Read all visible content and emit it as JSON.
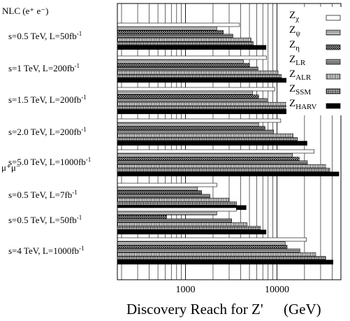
{
  "chart_data": {
    "type": "bar",
    "orientation": "horizontal",
    "xscale": "log",
    "xlim": [
      180,
      50000
    ],
    "grid": "vertical log gridlines",
    "legend_position": "top-right",
    "xlabel": "Discovery Reach for Z'",
    "xlabel_unit": "(GeV)",
    "xticks": [
      "1000",
      "10000"
    ],
    "xtick_values": [
      1000,
      10000
    ],
    "section_labels": [
      {
        "text": "NLC (e⁺ e⁻)",
        "before_group": 0
      },
      {
        "text": "μ⁺μ⁻",
        "before_group": 5
      }
    ],
    "series": [
      {
        "name": "Zχ",
        "sub": "χ",
        "pattern": "open"
      },
      {
        "name": "Zψ",
        "sub": "ψ",
        "pattern": "hlines"
      },
      {
        "name": "Zη",
        "sub": "η",
        "pattern": "crosshatch"
      },
      {
        "name": "ZLR",
        "sub": "LR",
        "pattern": "dense-hlines"
      },
      {
        "name": "ZALR",
        "sub": "ALR",
        "pattern": "vlines"
      },
      {
        "name": "ZSSM",
        "sub": "SSM",
        "pattern": "grid"
      },
      {
        "name": "ZHARV",
        "sub": "HARV",
        "pattern": "solid"
      }
    ],
    "groups": [
      {
        "label": "s=0.5 TeV, L=50fb",
        "exp": "-1",
        "values": [
          3900,
          2200,
          2600,
          3300,
          5200,
          5500,
          7600
        ]
      },
      {
        "label": "s=1 TeV, L=200fb",
        "exp": "-1",
        "values": [
          7700,
          4300,
          5000,
          6200,
          10300,
          11200,
          14900
        ]
      },
      {
        "label": "s=1.5 TeV, L=200fb",
        "exp": "-1",
        "values": [
          9500,
          5400,
          6300,
          7800,
          12800,
          14400,
          18500
        ]
      },
      {
        "label": "s=2.0 TeV, L=200fb",
        "exp": "-1",
        "values": [
          11000,
          6300,
          7400,
          9200,
          15000,
          16700,
          21300
        ]
      },
      {
        "label": "s=5.0 TeV, L=1000fb",
        "exp": "-1",
        "values": [
          25500,
          14800,
          17500,
          21500,
          34000,
          37800,
          47500
        ]
      },
      {
        "label": "s=0.5 TeV, L=7fb",
        "exp": "-1",
        "values": [
          2200,
          1350,
          1500,
          1850,
          3000,
          3600,
          4600
        ]
      },
      {
        "label": "s=0.5 TeV, L=50fb",
        "exp": "-1",
        "values": [
          3600,
          2200,
          620,
          3200,
          4700,
          6600,
          7600
        ]
      },
      {
        "label": "s=4 TeV, L=1000fb",
        "exp": "-1",
        "values": [
          21000,
          12300,
          12900,
          17800,
          26500,
          34000,
          41000
        ]
      }
    ]
  }
}
